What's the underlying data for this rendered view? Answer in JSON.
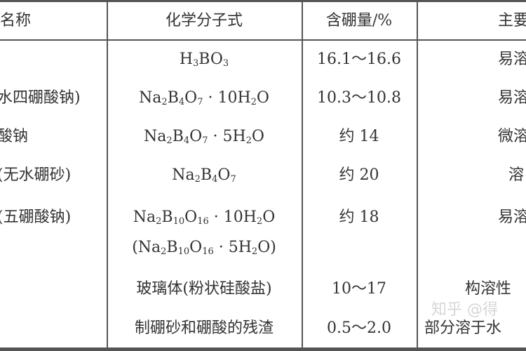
{
  "header": {
    "name": "名称",
    "formula": "化学分子式",
    "content": "含硼量/%",
    "main": "主要"
  },
  "rows": [
    {
      "name": "",
      "formula_html": "H<sub>3</sub>BO<sub>3</sub>",
      "content": "16.1～16.6",
      "main": "易溶"
    },
    {
      "name": "水四硼酸钠)",
      "formula_html": "Na<sub>2</sub>B<sub>4</sub>O<sub>7</sub> · 10H<sub>2</sub>O",
      "content": "10.3～10.8",
      "main": "易溶"
    },
    {
      "name": "酸钠",
      "formula_html": "Na<sub>2</sub>B<sub>4</sub>O<sub>7</sub> · 5H<sub>2</sub>O",
      "content": "约 14",
      "main": "微溶"
    },
    {
      "name": "(无水硼砂)",
      "formula_html": "Na<sub>2</sub>B<sub>4</sub>O<sub>7</sub>",
      "content": "约 20",
      "main": "溶"
    },
    {
      "name": "(五硼酸钠)",
      "formula_html": "Na<sub>2</sub>B<sub>10</sub>O<sub>16</sub> · 10H<sub>2</sub>O",
      "formula2_html": "(Na<sub>2</sub>B<sub>10</sub>O<sub>16</sub> · 5H<sub>2</sub>O)",
      "content": "约 18",
      "main": "易溶"
    },
    {
      "name": "",
      "formula": "玻璃体(粉状硅酸盐)",
      "content": "10～17",
      "main": "构溶性"
    },
    {
      "name": "",
      "formula": "制硼砂和硼酸的残渣",
      "content": "0.5～2.0",
      "main": "部分溶于水"
    }
  ],
  "watermark": "知乎 @得"
}
